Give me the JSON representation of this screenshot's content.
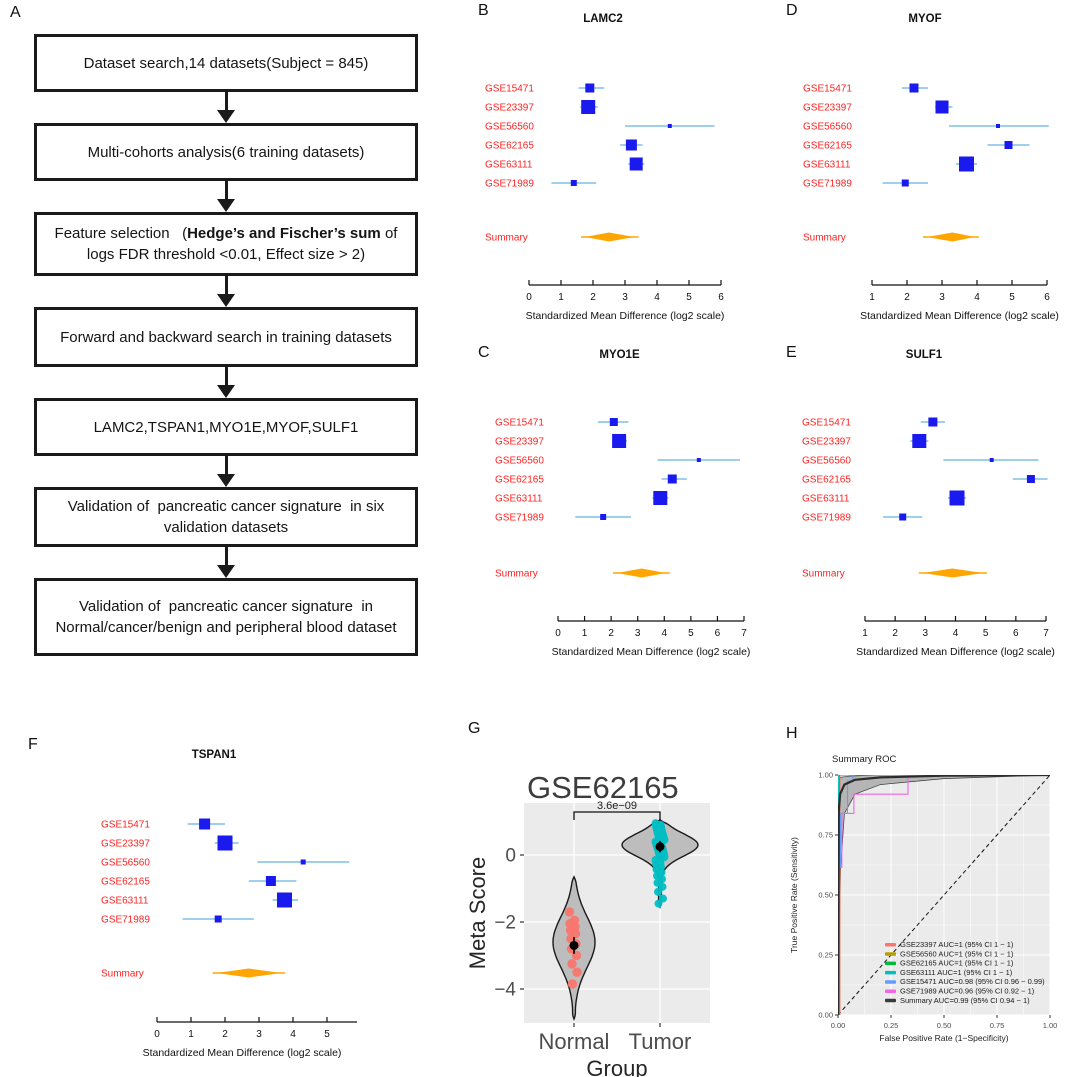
{
  "colors": {
    "forest_box": "#1a1aee",
    "forest_ci": "#9fd0eb",
    "forest_summary": "#ffa500",
    "forest_labels": "#ff2222",
    "normal_points": "#F8766D",
    "tumor_points": "#00BFC4",
    "roc_band": "#a8a8a8",
    "panel_bg": "#ebebeb"
  },
  "flowchart": {
    "panel_label": "A",
    "boxes": [
      {
        "text": "Dataset search,14 datasets(Subject = 845)"
      },
      {
        "text": "Multi-cohorts analysis(6 training datasets)"
      },
      {
        "prefix": "Feature selection   (",
        "bold": "Hedge’s and Fischer’s sum",
        "rest": " of logs FDR threshold <0.01, Effect size > 2)"
      },
      {
        "text": "Forward and backward search in training datasets"
      },
      {
        "text": "LAMC2,TSPAN1,MYO1E,MYOF,SULF1"
      },
      {
        "text": "Validation of  pancreatic cancer signature  in six validation datasets"
      },
      {
        "text": "Validation of  pancreatic cancer signature  in Normal/cancer/benign and peripheral blood dataset"
      }
    ]
  },
  "chart_data": [
    {
      "id": "forest-lamc2",
      "type": "forest",
      "panel_label": "B",
      "title": "LAMC2",
      "xlabel": "Standardized Mean Difference (log2 scale)",
      "xlim": [
        0,
        6
      ],
      "x_ticks": [
        0,
        1,
        2,
        3,
        4,
        5,
        6
      ],
      "rows": [
        {
          "label": "GSE15471",
          "est": 1.9,
          "lo": 1.55,
          "hi": 2.35,
          "size": 9
        },
        {
          "label": "GSE23397",
          "est": 1.85,
          "lo": 1.6,
          "hi": 2.15,
          "size": 14
        },
        {
          "label": "GSE56560",
          "est": 4.4,
          "lo": 3.0,
          "hi": 5.8,
          "size": 4
        },
        {
          "label": "GSE62165",
          "est": 3.2,
          "lo": 2.85,
          "hi": 3.55,
          "size": 11
        },
        {
          "label": "GSE63111",
          "est": 3.35,
          "lo": 3.1,
          "hi": 3.6,
          "size": 13
        },
        {
          "label": "GSE71989",
          "est": 1.4,
          "lo": 0.7,
          "hi": 2.1,
          "size": 6
        }
      ],
      "summary": {
        "label": "Summary",
        "est": 2.5,
        "lo": 1.75,
        "hi": 3.3
      }
    },
    {
      "id": "forest-myo1e",
      "type": "forest",
      "panel_label": "C",
      "title": "MYO1E",
      "xlabel": "Standardized Mean Difference (log2 scale)",
      "xlim": [
        0,
        7
      ],
      "x_ticks": [
        0,
        1,
        2,
        3,
        4,
        5,
        6,
        7
      ],
      "rows": [
        {
          "label": "GSE15471",
          "est": 2.1,
          "lo": 1.5,
          "hi": 2.65,
          "size": 8
        },
        {
          "label": "GSE23397",
          "est": 2.3,
          "lo": 2.05,
          "hi": 2.6,
          "size": 14
        },
        {
          "label": "GSE56560",
          "est": 5.3,
          "lo": 3.75,
          "hi": 6.85,
          "size": 4
        },
        {
          "label": "GSE62165",
          "est": 4.3,
          "lo": 3.9,
          "hi": 4.85,
          "size": 9
        },
        {
          "label": "GSE63111",
          "est": 3.85,
          "lo": 3.55,
          "hi": 4.15,
          "size": 14
        },
        {
          "label": "GSE71989",
          "est": 1.7,
          "lo": 0.65,
          "hi": 2.75,
          "size": 6
        }
      ],
      "summary": {
        "label": "Summary",
        "est": 3.15,
        "lo": 2.22,
        "hi": 4.06
      }
    },
    {
      "id": "forest-myof",
      "type": "forest",
      "panel_label": "D",
      "title": "MYOF",
      "xlabel": "Standardized Mean Difference (log2 scale)",
      "xlim": [
        1,
        6
      ],
      "x_ticks": [
        1,
        2,
        3,
        4,
        5,
        6
      ],
      "rows": [
        {
          "label": "GSE15471",
          "est": 2.2,
          "lo": 1.85,
          "hi": 2.6,
          "size": 9
        },
        {
          "label": "GSE23397",
          "est": 3.0,
          "lo": 2.8,
          "hi": 3.3,
          "size": 13
        },
        {
          "label": "GSE56560",
          "est": 4.6,
          "lo": 3.2,
          "hi": 6.05,
          "size": 4
        },
        {
          "label": "GSE62165",
          "est": 4.9,
          "lo": 4.3,
          "hi": 5.5,
          "size": 8
        },
        {
          "label": "GSE63111",
          "est": 3.7,
          "lo": 3.4,
          "hi": 4.0,
          "size": 15
        },
        {
          "label": "GSE71989",
          "est": 1.95,
          "lo": 1.3,
          "hi": 2.6,
          "size": 7
        }
      ],
      "summary": {
        "label": "Summary",
        "est": 3.3,
        "lo": 2.57,
        "hi": 3.94
      }
    },
    {
      "id": "forest-sulf1",
      "type": "forest",
      "panel_label": "E",
      "title": "SULF1",
      "xlabel": "Standardized Mean Difference (log2 scale)",
      "xlim": [
        1,
        7
      ],
      "x_ticks": [
        1,
        2,
        3,
        4,
        5,
        6,
        7
      ],
      "rows": [
        {
          "label": "GSE15471",
          "est": 3.25,
          "lo": 2.85,
          "hi": 3.65,
          "size": 9
        },
        {
          "label": "GSE23397",
          "est": 2.8,
          "lo": 2.5,
          "hi": 3.1,
          "size": 14
        },
        {
          "label": "GSE56560",
          "est": 5.2,
          "lo": 3.6,
          "hi": 6.75,
          "size": 4
        },
        {
          "label": "GSE62165",
          "est": 6.5,
          "lo": 5.9,
          "hi": 7.05,
          "size": 8
        },
        {
          "label": "GSE63111",
          "est": 4.05,
          "lo": 3.75,
          "hi": 4.35,
          "size": 15
        },
        {
          "label": "GSE71989",
          "est": 2.25,
          "lo": 1.6,
          "hi": 2.9,
          "size": 7
        }
      ],
      "summary": {
        "label": "Summary",
        "est": 3.9,
        "lo": 2.92,
        "hi": 4.91
      }
    },
    {
      "id": "forest-tspan1",
      "type": "forest",
      "panel_label": "F",
      "title": "TSPAN1",
      "xlabel": "Standardized Mean Difference (log2 scale)",
      "xlim": [
        0,
        5
      ],
      "x_ticks": [
        0,
        1,
        2,
        3,
        4,
        5
      ],
      "rows": [
        {
          "label": "GSE15471",
          "est": 1.4,
          "lo": 0.9,
          "hi": 2.0,
          "size": 11
        },
        {
          "label": "GSE23397",
          "est": 2.0,
          "lo": 1.7,
          "hi": 2.4,
          "size": 15
        },
        {
          "label": "GSE56560",
          "est": 4.3,
          "lo": 2.95,
          "hi": 5.65,
          "size": 5
        },
        {
          "label": "GSE62165",
          "est": 3.35,
          "lo": 2.7,
          "hi": 4.1,
          "size": 10
        },
        {
          "label": "GSE63111",
          "est": 3.75,
          "lo": 3.4,
          "hi": 4.15,
          "size": 15
        },
        {
          "label": "GSE71989",
          "est": 1.8,
          "lo": 0.75,
          "hi": 2.85,
          "size": 7
        }
      ],
      "summary": {
        "label": "Summary",
        "est": 2.7,
        "lo": 1.75,
        "hi": 3.65
      }
    },
    {
      "id": "violin-gse62165",
      "type": "violin",
      "panel_label": "G",
      "title": "GSE62165",
      "ylabel": "Meta Score",
      "xlabel": "Group",
      "p_annotation": "3.6e−09",
      "y_ticks": [
        0,
        -2,
        -4
      ],
      "ylim": [
        -5.0,
        1.55
      ],
      "groups": [
        {
          "name": "Normal",
          "color": "#F8766D",
          "mean": -2.7,
          "mean_se": 0.13,
          "violin": {
            "min": -4.9,
            "max": -0.65,
            "mode": -2.6,
            "bw": 0.75,
            "max_halfwidth": 21
          },
          "points": [
            -1.7,
            -1.95,
            -2.05,
            -2.15,
            -2.25,
            -2.35,
            -2.5,
            -2.65,
            -2.8,
            -3.0,
            -3.25,
            -3.5,
            -3.85
          ]
        },
        {
          "name": "Tumor",
          "color": "#00BFC4",
          "mean": 0.25,
          "mean_se": 0.05,
          "violin": {
            "min": -1.55,
            "max": 1.05,
            "mode": 0.3,
            "bw": 0.33,
            "max_halfwidth": 38
          },
          "points": [
            0.95,
            0.9,
            0.87,
            0.84,
            0.8,
            0.77,
            0.74,
            0.71,
            0.68,
            0.65,
            0.63,
            0.6,
            0.58,
            0.55,
            0.53,
            0.5,
            0.48,
            0.45,
            0.43,
            0.4,
            0.38,
            0.35,
            0.33,
            0.3,
            0.28,
            0.26,
            0.24,
            0.21,
            0.19,
            0.16,
            0.14,
            0.11,
            0.08,
            0.05,
            0.02,
            -0.02,
            -0.06,
            -0.1,
            -0.15,
            -0.2,
            -0.27,
            -0.35,
            -0.43,
            -0.52,
            -0.62,
            -0.72,
            -0.83,
            -0.95,
            -1.1,
            -1.3,
            -1.45
          ]
        }
      ]
    },
    {
      "id": "roc-summary",
      "type": "roc",
      "panel_label": "H",
      "title": "Summary ROC",
      "xlabel": "False Positive Rate (1−Specificity)",
      "ylabel": "True Positive Rate (Sensitivity)",
      "x_ticks": [
        "0.00",
        "0.25",
        "0.50",
        "0.75",
        "1.00"
      ],
      "y_ticks": [
        "0.00",
        "0.25",
        "0.50",
        "0.75",
        "1.00"
      ],
      "legend": [
        {
          "label": "GSE23397 AUC=1 (95% CI 1 − 1)",
          "color": "#F8766D"
        },
        {
          "label": "GSE56560 AUC=1 (95% CI 1 − 1)",
          "color": "#B79F00"
        },
        {
          "label": "GSE62165 AUC=1 (95% CI 1 − 1)",
          "color": "#00BA38"
        },
        {
          "label": "GSE63111 AUC=1 (95% CI 1 − 1)",
          "color": "#00BFC4"
        },
        {
          "label": "GSE15471 AUC=0.98 (95% CI 0.96 − 0.99)",
          "color": "#619CFF"
        },
        {
          "label": "GSE71989 AUC=0.96 (95% CI 0.92 − 1)",
          "color": "#F564E3"
        },
        {
          "label": "Summary AUC=0.99 (95% CI 0.94 − 1)",
          "color": "#3C3C3C"
        }
      ],
      "curves": [
        {
          "name": "GSE23397",
          "color": "#F8766D",
          "points": [
            [
              0,
              0
            ],
            [
              0.009,
              0
            ],
            [
              0.009,
              1
            ],
            [
              1,
              1
            ]
          ]
        },
        {
          "name": "GSE56560",
          "color": "#B79F00",
          "points": [
            [
              0,
              0
            ],
            [
              0.007,
              0
            ],
            [
              0.007,
              1
            ],
            [
              1,
              1
            ]
          ]
        },
        {
          "name": "GSE62165",
          "color": "#00BA38",
          "points": [
            [
              0,
              0
            ],
            [
              0.005,
              0
            ],
            [
              0.005,
              1
            ],
            [
              1,
              1
            ]
          ]
        },
        {
          "name": "GSE63111",
          "color": "#00BFC4",
          "points": [
            [
              0,
              0
            ],
            [
              0.003,
              0
            ],
            [
              0.003,
              1
            ],
            [
              1,
              1
            ]
          ]
        },
        {
          "name": "GSE15471",
          "color": "#619CFF",
          "points": [
            [
              0,
              0
            ],
            [
              0,
              0.62
            ],
            [
              0.012,
              0.62
            ],
            [
              0.012,
              0.84
            ],
            [
              0.045,
              0.84
            ],
            [
              0.045,
              0.975
            ],
            [
              0.07,
              0.975
            ],
            [
              0.07,
              1
            ],
            [
              1,
              1
            ]
          ]
        },
        {
          "name": "GSE71989",
          "color": "#F564E3",
          "points": [
            [
              0,
              0
            ],
            [
              0,
              0.615
            ],
            [
              0.018,
              0.615
            ],
            [
              0.018,
              0.84
            ],
            [
              0.075,
              0.84
            ],
            [
              0.075,
              0.92
            ],
            [
              0.33,
              0.92
            ],
            [
              0.33,
              1
            ],
            [
              1,
              1
            ]
          ]
        }
      ],
      "summary_curve": {
        "color": "#2b2b2b",
        "points": [
          [
            0,
            0
          ],
          [
            0.004,
            0.85
          ],
          [
            0.01,
            0.92
          ],
          [
            0.03,
            0.96
          ],
          [
            0.08,
            0.98
          ],
          [
            0.2,
            0.99
          ],
          [
            0.5,
            0.997
          ],
          [
            1,
            1
          ]
        ],
        "band_upper": [
          [
            0,
            0
          ],
          [
            0.002,
            0.9
          ],
          [
            0.004,
            0.97
          ],
          [
            0.01,
            0.99
          ],
          [
            0.05,
            0.995
          ],
          [
            0.2,
            1
          ],
          [
            1,
            1
          ]
        ],
        "band_lower": [
          [
            0,
            0
          ],
          [
            0.004,
            0.14
          ],
          [
            0.012,
            0.6
          ],
          [
            0.03,
            0.84
          ],
          [
            0.08,
            0.92
          ],
          [
            0.2,
            0.96
          ],
          [
            0.5,
            0.985
          ],
          [
            1,
            1
          ]
        ]
      },
      "diagonal": true
    }
  ]
}
